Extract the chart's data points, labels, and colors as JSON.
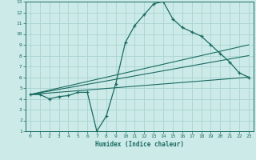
{
  "xlabel": "Humidex (Indice chaleur)",
  "ylabel": "",
  "bg_color": "#cceae7",
  "grid_color": "#aad4d0",
  "line_color": "#1a6b62",
  "xlim": [
    -0.5,
    23.5
  ],
  "ylim": [
    1,
    13
  ],
  "xticks": [
    0,
    1,
    2,
    3,
    4,
    5,
    6,
    7,
    8,
    9,
    10,
    11,
    12,
    13,
    14,
    15,
    16,
    17,
    18,
    19,
    20,
    21,
    22,
    23
  ],
  "yticks": [
    1,
    2,
    3,
    4,
    5,
    6,
    7,
    8,
    9,
    10,
    11,
    12,
    13
  ],
  "main_x": [
    0,
    1,
    2,
    3,
    4,
    5,
    6,
    7,
    8,
    9,
    10,
    11,
    12,
    13,
    14,
    15,
    16,
    17,
    18,
    19,
    20,
    21,
    22,
    23
  ],
  "main_y": [
    4.4,
    4.4,
    4.0,
    4.2,
    4.3,
    4.6,
    4.6,
    1.0,
    2.4,
    5.4,
    9.2,
    10.8,
    11.8,
    12.8,
    13.0,
    11.4,
    10.6,
    10.2,
    9.8,
    9.0,
    8.2,
    7.4,
    6.4,
    6.0
  ],
  "trend1_x": [
    0,
    23
  ],
  "trend1_y": [
    4.4,
    9.0
  ],
  "trend2_x": [
    0,
    23
  ],
  "trend2_y": [
    4.4,
    8.0
  ],
  "trend3_x": [
    0,
    23
  ],
  "trend3_y": [
    4.4,
    6.0
  ]
}
